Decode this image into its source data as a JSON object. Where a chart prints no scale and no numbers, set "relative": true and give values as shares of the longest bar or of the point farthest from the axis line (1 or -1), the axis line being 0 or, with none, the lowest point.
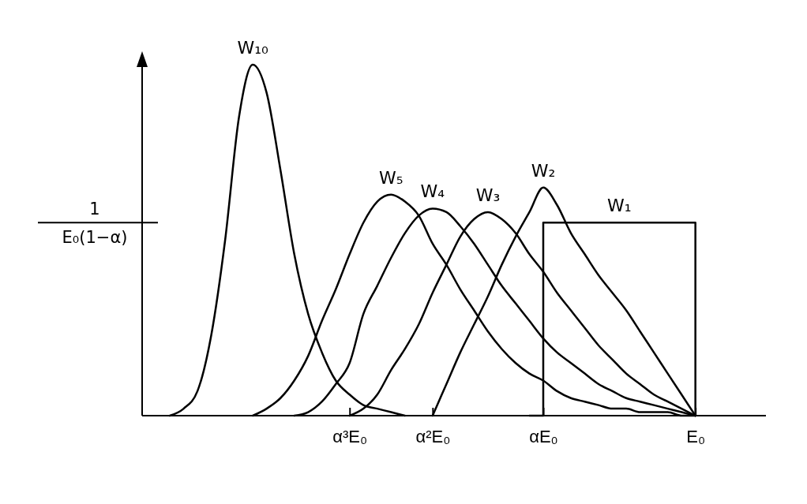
{
  "chart_data": {
    "type": "line",
    "relative": true,
    "categories": [
      null,
      null,
      null,
      null,
      null,
      null,
      null,
      null,
      null,
      null,
      null,
      null,
      null,
      null,
      null,
      "α³E₀",
      null,
      null,
      null,
      null,
      null,
      "α²E₀",
      null,
      null,
      null,
      null,
      null,
      null,
      null,
      "αE₀",
      null,
      null,
      null,
      null,
      null,
      null,
      null,
      null,
      null,
      null,
      "E₀",
      null,
      null,
      null,
      null,
      null
    ],
    "annotations": [
      "1",
      "E₀(1−α)"
    ],
    "series": [
      {
        "name": "W₁₀",
        "color": "#000000",
        "values": [
          null,
          null,
          0,
          0.02,
          0.07,
          0.23,
          0.5,
          0.85,
          1,
          0.92,
          0.7,
          0.46,
          0.29,
          0.18,
          0.1,
          0.06,
          0.03,
          0.02,
          0.01,
          0,
          null,
          null,
          null,
          null,
          null,
          null,
          null,
          null,
          null,
          null,
          null,
          null,
          null,
          null,
          null,
          null,
          null,
          null,
          null,
          null,
          null,
          null,
          null,
          null,
          null,
          null
        ]
      },
      {
        "name": "W₅",
        "color": "#000000",
        "values": [
          null,
          null,
          null,
          null,
          null,
          null,
          null,
          null,
          0,
          0.02,
          0.05,
          0.1,
          0.17,
          0.27,
          0.36,
          0.46,
          0.55,
          0.61,
          0.63,
          0.61,
          0.57,
          0.49,
          0.43,
          0.36,
          0.3,
          0.24,
          0.19,
          0.15,
          0.12,
          0.1,
          0.07,
          0.05,
          0.04,
          0.03,
          0.02,
          0.02,
          0.01,
          0.01,
          0.01,
          0,
          0,
          null,
          null,
          null,
          null,
          null
        ]
      },
      {
        "name": "W₄",
        "color": "#000000",
        "values": [
          null,
          null,
          null,
          null,
          null,
          null,
          null,
          null,
          null,
          null,
          null,
          0,
          0.01,
          0.04,
          0.09,
          0.15,
          0.29,
          0.37,
          0.45,
          0.52,
          0.57,
          0.59,
          0.58,
          0.54,
          0.49,
          0.43,
          0.37,
          0.32,
          0.27,
          0.22,
          0.18,
          0.15,
          0.12,
          0.09,
          0.07,
          0.05,
          0.04,
          0.03,
          0.02,
          0.01,
          0,
          null,
          null,
          null,
          null,
          null
        ]
      },
      {
        "name": "W₃",
        "color": "#000000",
        "values": [
          null,
          null,
          null,
          null,
          null,
          null,
          null,
          null,
          null,
          null,
          null,
          null,
          null,
          null,
          null,
          0,
          0.02,
          0.06,
          0.13,
          0.19,
          0.26,
          0.35,
          0.43,
          0.51,
          0.56,
          0.58,
          0.56,
          0.52,
          0.46,
          0.41,
          0.35,
          0.3,
          0.25,
          0.2,
          0.16,
          0.12,
          0.09,
          0.06,
          0.04,
          0.02,
          0,
          null,
          null,
          null,
          null,
          null
        ]
      },
      {
        "name": "W₂",
        "color": "#000000",
        "values": [
          null,
          null,
          null,
          null,
          null,
          null,
          null,
          null,
          null,
          null,
          null,
          null,
          null,
          null,
          null,
          null,
          null,
          null,
          null,
          null,
          null,
          0,
          0.09,
          0.18,
          0.26,
          0.34,
          0.43,
          0.51,
          0.58,
          0.65,
          0.6,
          0.52,
          0.46,
          0.4,
          0.35,
          0.3,
          0.24,
          0.18,
          0.12,
          0.06,
          0,
          null,
          null,
          null,
          null,
          null
        ]
      },
      {
        "name": "W₁",
        "type": "step",
        "color": "#000000",
        "values": [
          null,
          null,
          null,
          null,
          null,
          null,
          null,
          null,
          null,
          null,
          null,
          null,
          null,
          null,
          null,
          null,
          null,
          null,
          null,
          null,
          null,
          null,
          null,
          null,
          null,
          null,
          null,
          null,
          0,
          0.55,
          0.55,
          0.55,
          0.55,
          0.55,
          0.55,
          0.55,
          0.55,
          0.55,
          0.55,
          0.55,
          0,
          null,
          null,
          null,
          null,
          null
        ]
      }
    ]
  }
}
